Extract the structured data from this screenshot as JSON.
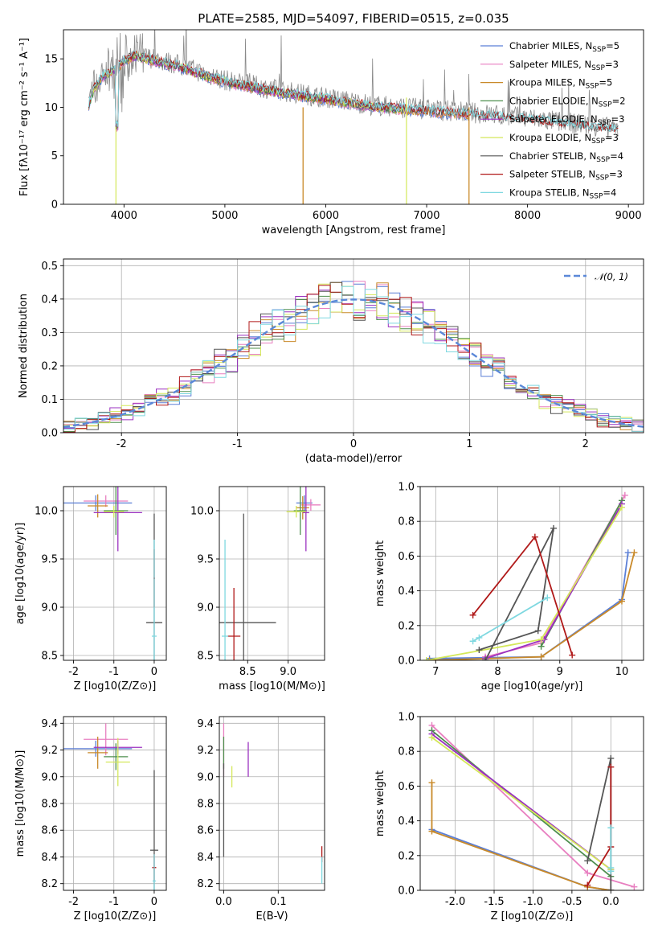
{
  "colors": {
    "chabrier_miles": "#5b7fd6",
    "salpeter_miles": "#e87fc0",
    "kroupa_miles": "#c98a2a",
    "chabrier_elodie": "#4e8f4e",
    "salpeter_elodie": "#9b30c0",
    "kroupa_elodie": "#d4e85a",
    "chabrier_stelib": "#555555",
    "salpeter_stelib": "#b01818",
    "kroupa_stelib": "#7fd8e0",
    "data_grey": "#8a8a8a",
    "normal": "#5b88d8"
  },
  "chart_data": [
    {
      "type": "line",
      "title": "PLATE=2585, MJD=54097, FIBERID=0515, z=0.035",
      "xlabel": "wavelength [Angstrom, rest frame]",
      "ylabel": "Flux [fλ10⁻¹⁷ erg cm⁻² s⁻¹ A⁻¹]",
      "xlim": [
        3400,
        9150
      ],
      "ylim": [
        0,
        18
      ],
      "xticks": [
        4000,
        5000,
        6000,
        7000,
        8000,
        9000
      ],
      "yticks": [
        0,
        5,
        10,
        15
      ],
      "grid": false,
      "legend_position": "top-right",
      "legend": [
        "Chabrier MILES, N_SSP=5",
        "Salpeter MILES, N_SSP=3",
        "Kroupa MILES, N_SSP=5",
        "Chabrier ELODIE, N_SSP=2",
        "Salpeter ELODIE, N_SSP=3",
        "Kroupa ELODIE, N_SSP=3",
        "Chabrier STELIB, N_SSP=4",
        "Salpeter STELIB, N_SSP=3",
        "Kroupa STELIB, N_SSP=4"
      ],
      "series": [
        {
          "name": "data",
          "x": [
            3650,
            3700,
            3800,
            3900,
            4000,
            4100,
            4300,
            4500,
            4800,
            5000,
            5500,
            6000,
            6500,
            7000,
            7500,
            8000,
            8500,
            8900
          ],
          "y": [
            10.5,
            12.0,
            13.5,
            14.0,
            15.0,
            15.5,
            15.0,
            14.5,
            13.5,
            12.8,
            11.8,
            11.0,
            10.2,
            9.8,
            9.4,
            8.9,
            8.3,
            7.8
          ]
        },
        {
          "name": "models",
          "x": [
            3650,
            3700,
            3800,
            3900,
            4000,
            4100,
            4300,
            4500,
            4800,
            5000,
            5500,
            6000,
            6500,
            7000,
            7500
          ],
          "y": [
            10.5,
            11.5,
            12.8,
            13.8,
            14.8,
            15.2,
            14.8,
            14.2,
            13.3,
            12.6,
            11.6,
            10.8,
            10.1,
            9.6,
            9.2
          ]
        }
      ]
    },
    {
      "type": "line",
      "xlabel": "(data-model)/error",
      "ylabel": "Normed distribution",
      "xlim": [
        -2.5,
        2.5
      ],
      "ylim": [
        0,
        0.52
      ],
      "xticks": [
        -2,
        -1,
        0,
        1,
        2
      ],
      "yticks": [
        0.0,
        0.1,
        0.2,
        0.3,
        0.4,
        0.5
      ],
      "grid": true,
      "legend_position": "top-right",
      "legend": [
        "𝒩(0, 1)"
      ]
    },
    {
      "type": "scatter",
      "xlabel": "Z [log10(Z/Z⊙)]",
      "ylabel": "age  [log10(age/yr)]",
      "xlim": [
        -2.25,
        0.3
      ],
      "ylim": [
        8.45,
        10.25
      ],
      "xticks": [
        -2,
        -1,
        0
      ],
      "yticks": [
        8.5,
        9.0,
        9.5,
        10.0
      ],
      "grid": true,
      "points": [
        {
          "x": -1.45,
          "y": 10.08,
          "xerr": 0.9,
          "yerr": 0.08,
          "series": "chabrier_miles"
        },
        {
          "x": -1.2,
          "y": 10.1,
          "xerr": 0.55,
          "yerr": 0.06,
          "series": "salpeter_miles"
        },
        {
          "x": -1.4,
          "y": 10.05,
          "xerr": 0.25,
          "yerr": 0.12,
          "series": "kroupa_miles"
        },
        {
          "x": -0.95,
          "y": 10.0,
          "xerr": 0.3,
          "yerr": 0.25,
          "series": "chabrier_elodie"
        },
        {
          "x": -0.9,
          "y": 9.98,
          "xerr": 0.6,
          "yerr": 0.4,
          "series": "salpeter_elodie"
        },
        {
          "x": -1.0,
          "y": 9.99,
          "xerr": 0.25,
          "yerr": 0.06,
          "series": "kroupa_elodie"
        },
        {
          "x": 0.0,
          "y": 8.84,
          "xerr": 0.2,
          "yerr": 1.13,
          "series": "chabrier_stelib"
        },
        {
          "x": 0.0,
          "y": 9.3,
          "xerr": 0.02,
          "yerr": 0.3,
          "series": "salpeter_stelib"
        },
        {
          "x": 0.0,
          "y": 8.7,
          "xerr": 0.06,
          "yerr": 1.0,
          "series": "kroupa_stelib"
        }
      ]
    },
    {
      "type": "scatter",
      "xlabel": "mass [log10(M/M⊙)]",
      "xlim": [
        8.15,
        9.45
      ],
      "ylim": [
        8.45,
        10.25
      ],
      "xticks": [
        8.5,
        9.0
      ],
      "yticks": [
        8.5,
        9.0,
        9.5,
        10.0
      ],
      "grid": true,
      "points": [
        {
          "x": 9.2,
          "y": 10.08,
          "xerr": 0.1,
          "yerr": 0.08,
          "series": "chabrier_miles"
        },
        {
          "x": 9.28,
          "y": 10.06,
          "xerr": 0.12,
          "yerr": 0.06,
          "series": "salpeter_miles"
        },
        {
          "x": 9.18,
          "y": 10.03,
          "xerr": 0.08,
          "yerr": 0.12,
          "series": "kroupa_miles"
        },
        {
          "x": 9.15,
          "y": 10.0,
          "xerr": 0.08,
          "yerr": 0.25,
          "series": "chabrier_elodie"
        },
        {
          "x": 9.22,
          "y": 9.98,
          "xerr": 0.04,
          "yerr": 0.4,
          "series": "salpeter_elodie"
        },
        {
          "x": 9.1,
          "y": 9.99,
          "xerr": 0.12,
          "yerr": 0.06,
          "series": "kroupa_elodie"
        },
        {
          "x": 8.45,
          "y": 8.84,
          "xerr": 0.4,
          "yerr": 1.13,
          "series": "chabrier_stelib"
        },
        {
          "x": 8.33,
          "y": 8.7,
          "xerr": 0.08,
          "yerr": 0.5,
          "series": "salpeter_stelib"
        },
        {
          "x": 8.22,
          "y": 8.7,
          "xerr": 0.04,
          "yerr": 1.0,
          "series": "kroupa_stelib"
        }
      ]
    },
    {
      "type": "line",
      "xlabel": "age  [log10(age/yr)]",
      "ylabel": "mass weight",
      "xlim": [
        6.75,
        10.35
      ],
      "ylim": [
        0,
        1.0
      ],
      "xticks": [
        7,
        8,
        9,
        10
      ],
      "yticks": [
        0.0,
        0.2,
        0.4,
        0.6,
        0.8,
        1.0
      ],
      "grid": true,
      "series": [
        {
          "name": "chabrier_miles",
          "x": [
            6.9,
            8.7,
            10.0,
            10.1
          ],
          "y": [
            0.01,
            0.02,
            0.35,
            0.62
          ]
        },
        {
          "name": "salpeter_miles",
          "x": [
            7.8,
            8.7,
            10.05
          ],
          "y": [
            0.02,
            0.1,
            0.95
          ]
        },
        {
          "name": "kroupa_miles",
          "x": [
            6.9,
            8.7,
            10.0,
            10.2
          ],
          "y": [
            0.0,
            0.02,
            0.34,
            0.62
          ]
        },
        {
          "name": "chabrier_elodie",
          "x": [
            8.7,
            10.0
          ],
          "y": [
            0.08,
            0.92
          ]
        },
        {
          "name": "salpeter_elodie",
          "x": [
            7.8,
            8.75,
            10.0
          ],
          "y": [
            0.01,
            0.12,
            0.9
          ]
        },
        {
          "name": "kroupa_elodie",
          "x": [
            6.85,
            8.7,
            10.0
          ],
          "y": [
            0.0,
            0.12,
            0.88
          ]
        },
        {
          "name": "chabrier_stelib",
          "x": [
            7.7,
            8.65,
            8.9,
            7.8
          ],
          "y": [
            0.06,
            0.17,
            0.76,
            0.0
          ]
        },
        {
          "name": "salpeter_stelib",
          "x": [
            7.6,
            8.6,
            9.2
          ],
          "y": [
            0.26,
            0.71,
            0.03
          ]
        },
        {
          "name": "kroupa_stelib",
          "x": [
            7.6,
            7.7,
            8.8
          ],
          "y": [
            0.11,
            0.13,
            0.36
          ]
        }
      ]
    },
    {
      "type": "scatter",
      "xlabel": "Z [log10(Z/Z⊙)]",
      "ylabel": "mass [log10(M/M⊙)]",
      "xlim": [
        -2.25,
        0.3
      ],
      "ylim": [
        8.15,
        9.45
      ],
      "xticks": [
        -2,
        -1,
        0
      ],
      "yticks": [
        8.2,
        8.4,
        8.6,
        8.8,
        9.0,
        9.2,
        9.4
      ],
      "grid": true,
      "points": [
        {
          "x": -1.45,
          "y": 9.21,
          "xerr": 0.9,
          "yerr": 0.06,
          "series": "chabrier_miles"
        },
        {
          "x": -1.2,
          "y": 9.28,
          "xerr": 0.55,
          "yerr": 0.12,
          "series": "salpeter_miles"
        },
        {
          "x": -1.4,
          "y": 9.18,
          "xerr": 0.25,
          "yerr": 0.12,
          "series": "kroupa_miles"
        },
        {
          "x": -0.95,
          "y": 9.15,
          "xerr": 0.3,
          "yerr": 0.1,
          "series": "chabrier_elodie"
        },
        {
          "x": -0.9,
          "y": 9.22,
          "xerr": 0.6,
          "yerr": 0.05,
          "series": "salpeter_elodie"
        },
        {
          "x": -0.9,
          "y": 9.11,
          "xerr": 0.3,
          "yerr": 0.18,
          "series": "kroupa_elodie"
        },
        {
          "x": 0.0,
          "y": 8.45,
          "xerr": 0.1,
          "yerr": 0.6,
          "series": "chabrier_stelib"
        },
        {
          "x": 0.0,
          "y": 8.32,
          "xerr": 0.05,
          "yerr": 0.1,
          "series": "salpeter_stelib"
        },
        {
          "x": 0.0,
          "y": 8.22,
          "xerr": 0.04,
          "yerr": 0.2,
          "series": "kroupa_stelib"
        }
      ]
    },
    {
      "type": "scatter",
      "xlabel": "E(B-V)",
      "xlim": [
        -0.008,
        0.185
      ],
      "ylim": [
        8.15,
        9.45
      ],
      "xticks": [
        0.0,
        0.1
      ],
      "yticks": [
        8.2,
        8.4,
        8.6,
        8.8,
        9.0,
        9.2,
        9.4
      ],
      "grid": true,
      "points": [
        {
          "x": 0.0,
          "y": 9.2,
          "yerr": 0.2,
          "series": "salpeter_miles"
        },
        {
          "x": 0.0,
          "y": 9.18,
          "yerr": 0.12,
          "series": "chabrier_elodie"
        },
        {
          "x": 0.045,
          "y": 9.13,
          "yerr": 0.13,
          "series": "salpeter_elodie"
        },
        {
          "x": 0.015,
          "y": 9.0,
          "yerr": 0.08,
          "series": "kroupa_elodie"
        },
        {
          "x": 0.0,
          "y": 8.75,
          "yerr": 0.35,
          "series": "chabrier_stelib"
        },
        {
          "x": 0.18,
          "y": 8.42,
          "yerr": 0.06,
          "series": "salpeter_stelib"
        },
        {
          "x": 0.18,
          "y": 8.3,
          "yerr": 0.1,
          "series": "kroupa_stelib"
        }
      ]
    },
    {
      "type": "line",
      "xlabel": "Z [log10(Z/Z⊙)]",
      "ylabel": "mass weight",
      "xlim": [
        -2.45,
        0.42
      ],
      "ylim": [
        0,
        1.0
      ],
      "xticks": [
        -2.0,
        -1.5,
        -1.0,
        -0.5,
        0.0
      ],
      "yticks": [
        0.0,
        0.2,
        0.4,
        0.6,
        0.8,
        1.0
      ],
      "grid": true,
      "series": [
        {
          "name": "chabrier_miles",
          "x": [
            -2.3,
            -0.3,
            0.0
          ],
          "y": [
            0.35,
            0.02,
            0.0
          ]
        },
        {
          "name": "salpeter_miles",
          "x": [
            -2.3,
            -0.3,
            0.3
          ],
          "y": [
            0.95,
            0.1,
            0.02
          ]
        },
        {
          "name": "kroupa_miles",
          "x": [
            -2.3,
            -2.3,
            -0.3,
            0.0
          ],
          "y": [
            0.62,
            0.34,
            0.02,
            0.0
          ]
        },
        {
          "name": "chabrier_elodie",
          "x": [
            -2.3,
            0.0
          ],
          "y": [
            0.92,
            0.08
          ]
        },
        {
          "name": "salpeter_elodie",
          "x": [
            -2.3,
            0.0
          ],
          "y": [
            0.9,
            0.12
          ]
        },
        {
          "name": "kroupa_elodie",
          "x": [
            -2.3,
            0.0
          ],
          "y": [
            0.88,
            0.12
          ]
        },
        {
          "name": "chabrier_stelib",
          "x": [
            -0.3,
            0.0,
            0.0
          ],
          "y": [
            0.17,
            0.76,
            0.0
          ]
        },
        {
          "name": "salpeter_stelib",
          "x": [
            -0.3,
            0.0,
            0.0
          ],
          "y": [
            0.03,
            0.25,
            0.71
          ]
        },
        {
          "name": "kroupa_stelib",
          "x": [
            0.0,
            0.0,
            0.0
          ],
          "y": [
            0.11,
            0.36,
            0.13
          ]
        }
      ]
    }
  ]
}
